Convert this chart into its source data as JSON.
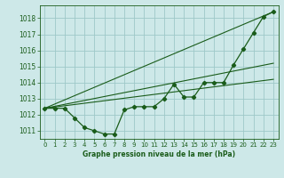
{
  "background_color": "#cde8e8",
  "grid_color": "#9ec8c8",
  "line_color": "#1a5c1a",
  "title": "Graphe pression niveau de la mer (hPa)",
  "xlim": [
    -0.5,
    23.5
  ],
  "ylim": [
    1010.5,
    1018.8
  ],
  "yticks": [
    1011,
    1012,
    1013,
    1014,
    1015,
    1016,
    1017,
    1018
  ],
  "xticks": [
    0,
    1,
    2,
    3,
    4,
    5,
    6,
    7,
    8,
    9,
    10,
    11,
    12,
    13,
    14,
    15,
    16,
    17,
    18,
    19,
    20,
    21,
    22,
    23
  ],
  "series1_x": [
    0,
    1,
    2,
    3,
    4,
    5,
    6,
    7,
    8,
    9,
    10,
    11,
    12,
    13,
    14,
    15,
    16,
    17,
    18,
    19,
    20,
    21,
    22,
    23
  ],
  "series1_y": [
    1012.4,
    1012.4,
    1012.4,
    1011.8,
    1011.2,
    1011.0,
    1010.8,
    1010.8,
    1012.3,
    1012.5,
    1012.5,
    1012.5,
    1013.0,
    1013.9,
    1013.1,
    1013.1,
    1014.0,
    1014.0,
    1014.0,
    1015.1,
    1016.1,
    1017.1,
    1018.1,
    1018.4
  ],
  "series2_x": [
    0,
    23
  ],
  "series2_y": [
    1012.4,
    1018.4
  ],
  "series3_x": [
    0,
    23
  ],
  "series3_y": [
    1012.4,
    1015.2
  ],
  "series4_x": [
    0,
    23
  ],
  "series4_y": [
    1012.4,
    1014.2
  ]
}
